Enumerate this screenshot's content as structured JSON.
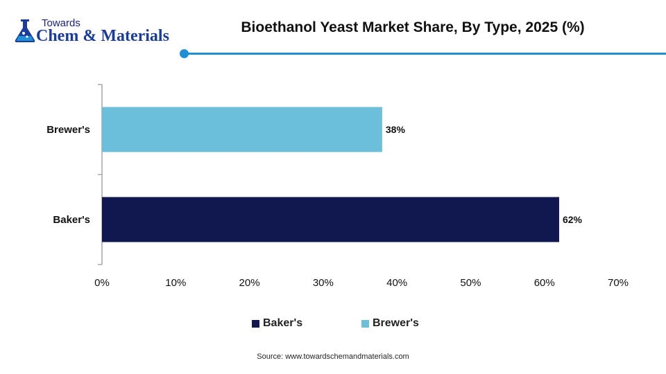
{
  "logo": {
    "top_text": "Towards",
    "main_text": "Chem & Materials"
  },
  "title": "Bioethanol Yeast Market Share, By Type, 2025 (%)",
  "source": "Source: www.towardschemandmaterials.com",
  "colors": {
    "accent": "#1f8fd6",
    "bakers": "#11174f",
    "brewers": "#6bbfdb"
  },
  "legend": [
    {
      "label": "Baker's",
      "color": "#11174f"
    },
    {
      "label": "Brewer's",
      "color": "#6bbfdb"
    }
  ],
  "chart_data": {
    "type": "bar",
    "orientation": "horizontal",
    "categories": [
      "Brewer's",
      "Baker's"
    ],
    "values": [
      38,
      62
    ],
    "value_labels": [
      "38%",
      "62%"
    ],
    "colors": [
      "#6bbfdb",
      "#11174f"
    ],
    "xlim": [
      0,
      70
    ],
    "x_ticks": [
      0,
      10,
      20,
      30,
      40,
      50,
      60,
      70
    ],
    "x_tick_labels": [
      "0%",
      "10%",
      "20%",
      "30%",
      "40%",
      "50%",
      "60%",
      "70%"
    ],
    "title": "Bioethanol Yeast Market Share, By Type, 2025 (%)",
    "xlabel": "",
    "ylabel": "",
    "grid": false,
    "legend_position": "bottom"
  }
}
